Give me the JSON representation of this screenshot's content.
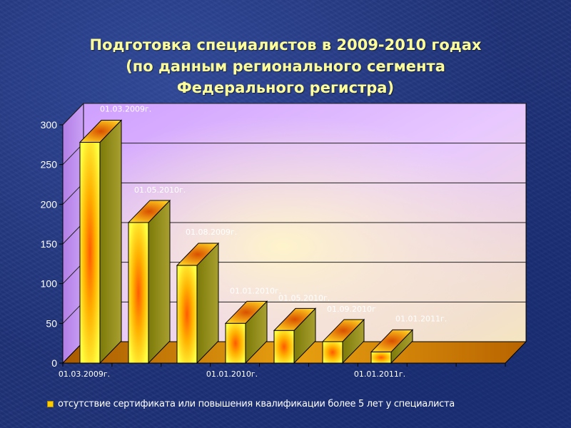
{
  "title_lines": [
    "Подготовка специалистов в 2009-2010 годах",
    "(по данным регионального сегмента",
    "Федерального регистра)"
  ],
  "colors": {
    "bar_front_edge": "#ffff33",
    "bar_center": "#ff6a00",
    "bar_side": "#8a8a10",
    "wall": "#d9a6ff",
    "floor": "#cc7a00"
  },
  "chart_data": {
    "type": "bar",
    "title": "Подготовка специалистов в 2009-2010 годах (по данным регионального сегмента Федерального регистра)",
    "categories": [
      "01.03.2009г.",
      "01.05.2010г.",
      "01.08.2009г.",
      "01.01.2010г.",
      "01.05.2010г.",
      "01.09.2010г",
      "01.01.2011г."
    ],
    "series": [
      {
        "name": "отсутствие сертификата или повышения квалификации более 5 лет у специалиста",
        "values": [
          278,
          177,
          123,
          50,
          41,
          27,
          14
        ]
      }
    ],
    "data_labels": [
      "01.03.2009г.",
      "01.05.2010г.",
      "01.08.2009г.",
      "01.01.2010г.",
      "01.05.2010г.",
      "01.09.2010г",
      "01.01.2011г."
    ],
    "x_tick_labels": [
      "01.03.2009г.",
      "01.01.2010г.",
      "01.01.2011г."
    ],
    "y_ticks": [
      0,
      50,
      100,
      150,
      200,
      250,
      300
    ],
    "ylim": [
      0,
      300
    ],
    "grid": true,
    "legend": "bottom"
  }
}
